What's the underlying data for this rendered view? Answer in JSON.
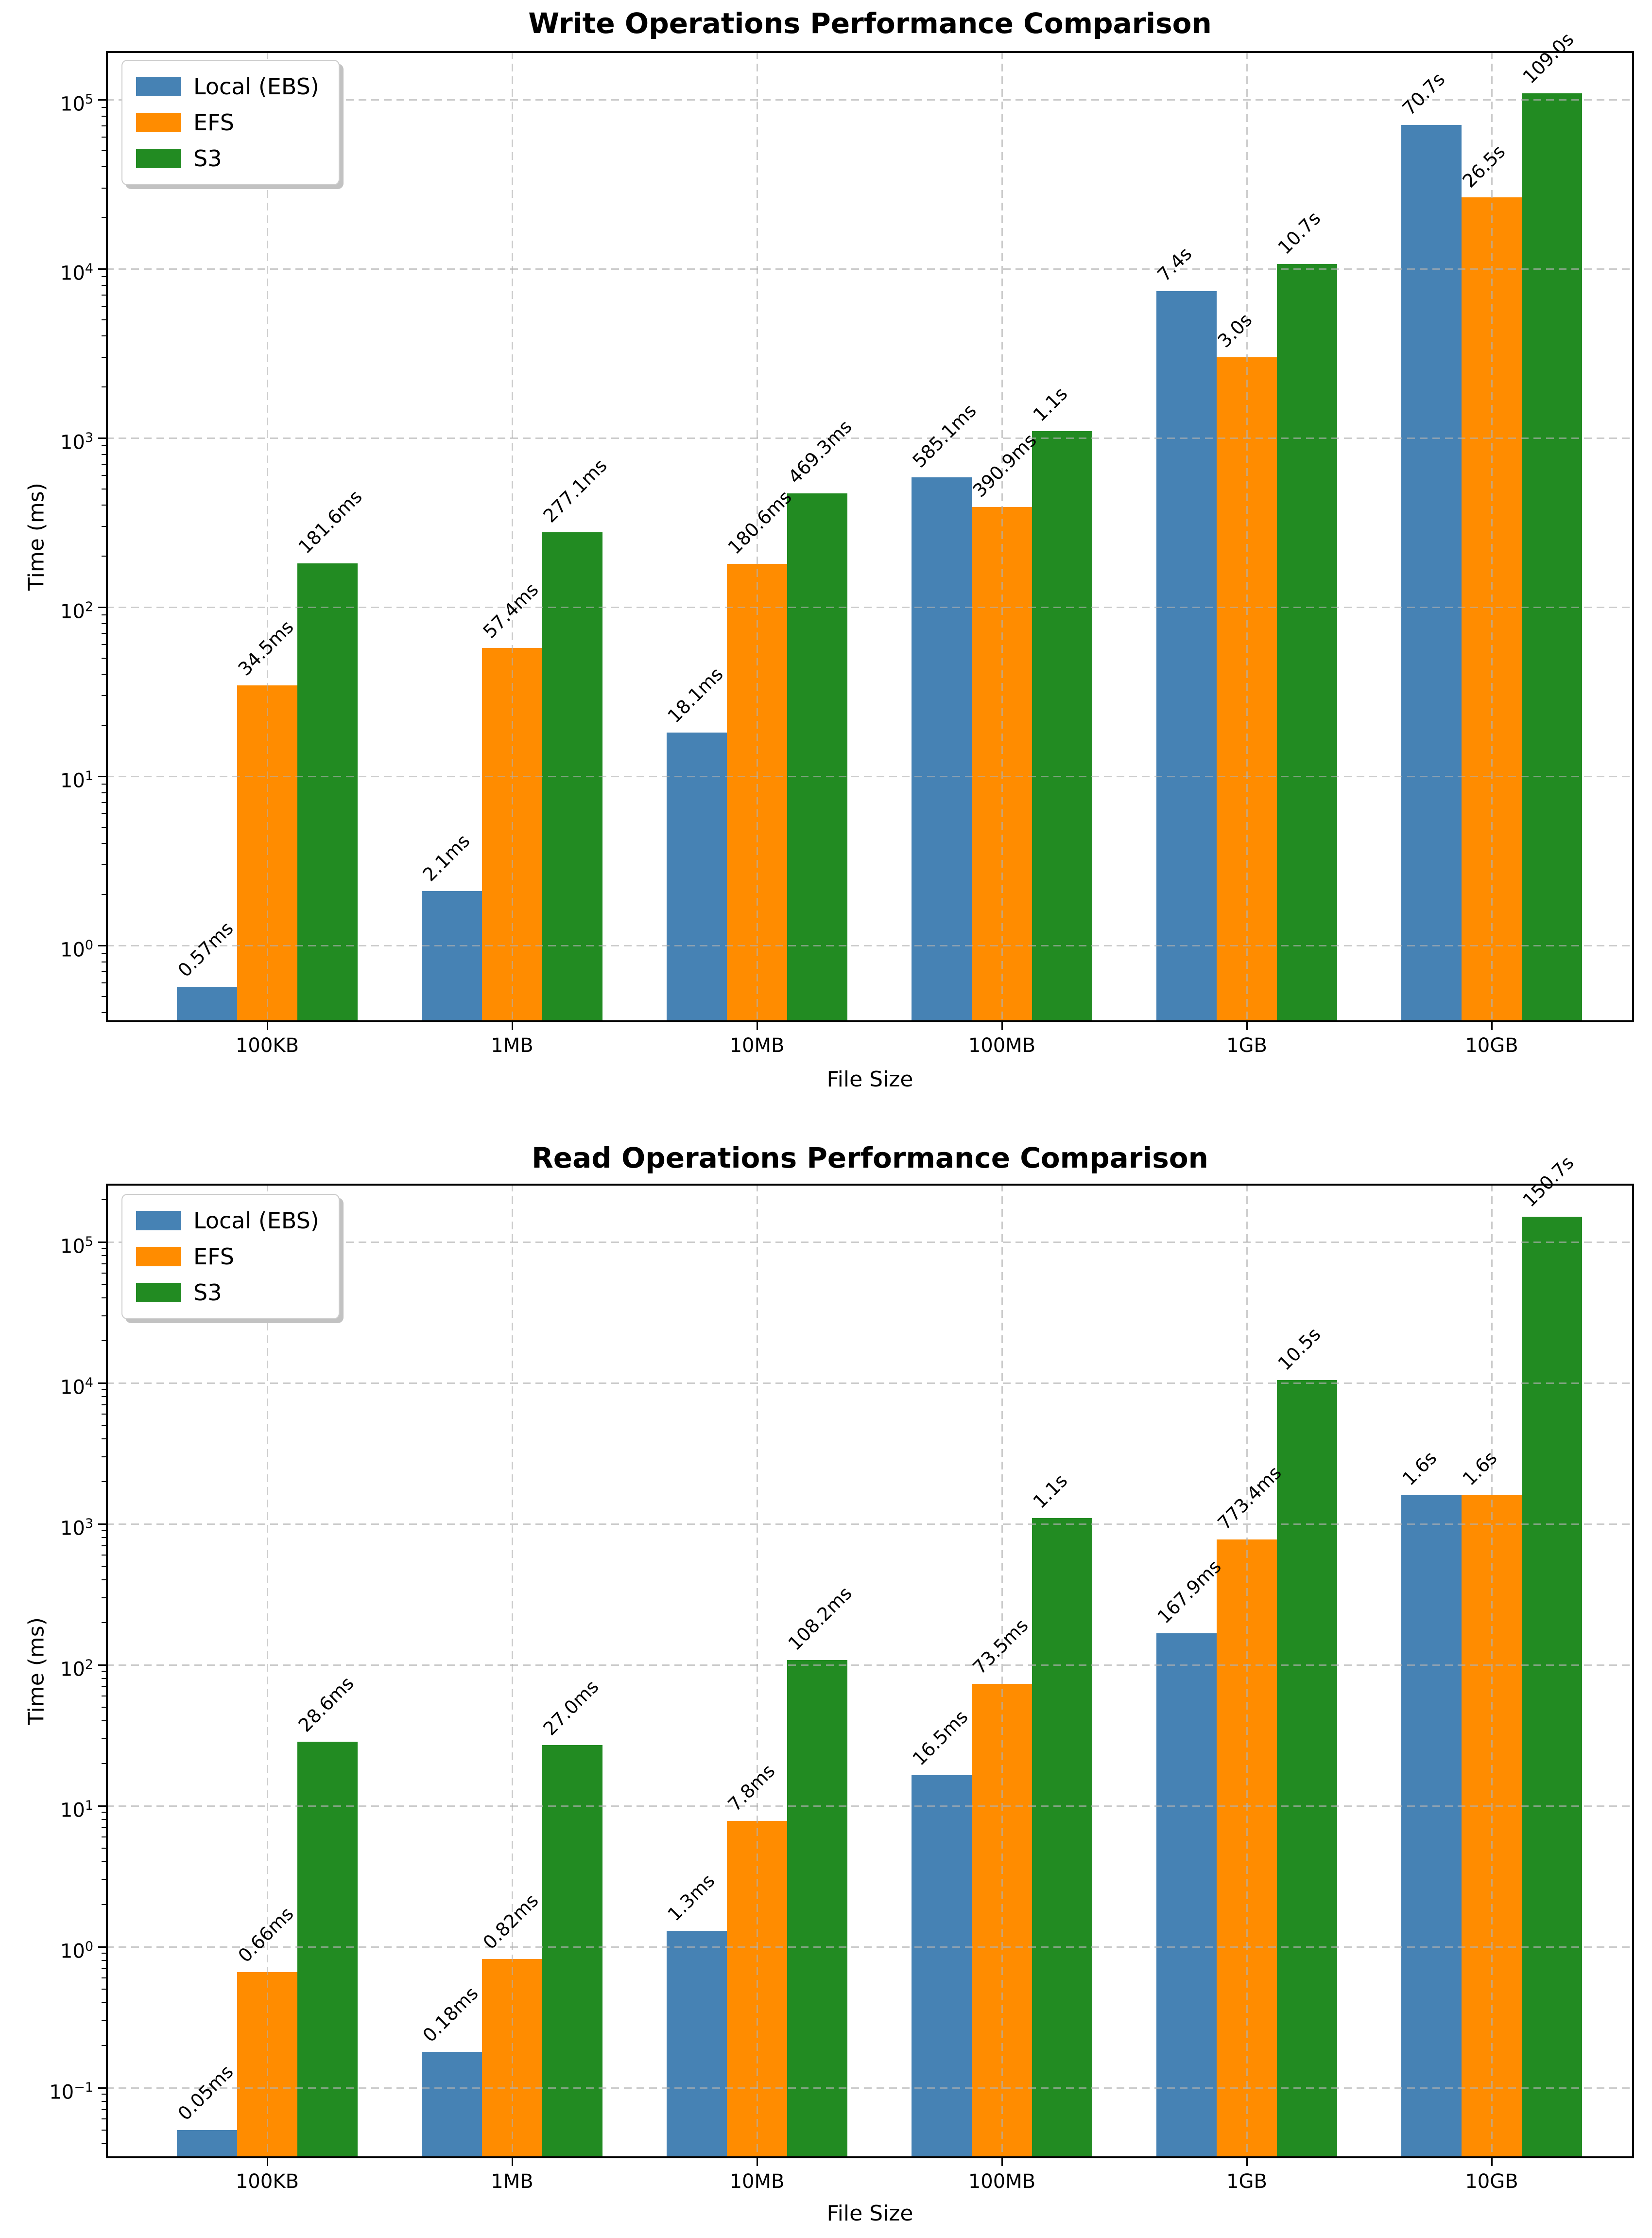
{
  "figure": {
    "background": "#ffffff"
  },
  "chart_data": [
    {
      "type": "bar",
      "title": "Write Operations Performance Comparison",
      "xlabel": "File Size",
      "ylabel": "Time (ms)",
      "yscale": "log",
      "ylim_ms": [
        0.35,
        194000
      ],
      "grid": true,
      "grid_style": "dashed",
      "legend_position": "upper left",
      "categories": [
        "100KB",
        "1MB",
        "10MB",
        "100MB",
        "1GB",
        "10GB"
      ],
      "y_tick_exponents": [
        0,
        1,
        2,
        3,
        4,
        5
      ],
      "series": [
        {
          "name": "Local (EBS)",
          "color": "#4682B4",
          "values_ms": [
            0.57,
            2.1,
            18.1,
            585.1,
            7400,
            70700
          ],
          "bar_labels": [
            "0.57ms",
            "2.1ms",
            "18.1ms",
            "585.1ms",
            "7.4s",
            "70.7s"
          ]
        },
        {
          "name": "EFS",
          "color": "#FF8C00",
          "values_ms": [
            34.5,
            57.4,
            180.6,
            390.9,
            3000,
            26500
          ],
          "bar_labels": [
            "34.5ms",
            "57.4ms",
            "180.6ms",
            "390.9ms",
            "3.0s",
            "26.5s"
          ]
        },
        {
          "name": "S3",
          "color": "#228B22",
          "values_ms": [
            181.6,
            277.1,
            469.3,
            1100,
            10700,
            109000
          ],
          "bar_labels": [
            "181.6ms",
            "277.1ms",
            "469.3ms",
            "1.1s",
            "10.7s",
            "109.0s"
          ]
        }
      ]
    },
    {
      "type": "bar",
      "title": "Read Operations Performance Comparison",
      "xlabel": "File Size",
      "ylabel": "Time (ms)",
      "yscale": "log",
      "ylim_ms": [
        0.032,
        259000
      ],
      "grid": true,
      "grid_style": "dashed",
      "legend_position": "upper left",
      "categories": [
        "100KB",
        "1MB",
        "10MB",
        "100MB",
        "1GB",
        "10GB"
      ],
      "y_tick_exponents": [
        -1,
        0,
        1,
        2,
        3,
        4,
        5
      ],
      "series": [
        {
          "name": "Local (EBS)",
          "color": "#4682B4",
          "values_ms": [
            0.05,
            0.18,
            1.3,
            16.5,
            167.9,
            1600
          ],
          "bar_labels": [
            "0.05ms",
            "0.18ms",
            "1.3ms",
            "16.5ms",
            "167.9ms",
            "1.6s"
          ]
        },
        {
          "name": "EFS",
          "color": "#FF8C00",
          "values_ms": [
            0.66,
            0.82,
            7.8,
            73.5,
            773.4,
            1600
          ],
          "bar_labels": [
            "0.66ms",
            "0.82ms",
            "7.8ms",
            "73.5ms",
            "773.4ms",
            "1.6s"
          ]
        },
        {
          "name": "S3",
          "color": "#228B22",
          "values_ms": [
            28.6,
            27.0,
            108.2,
            1100,
            10500,
            150700
          ],
          "bar_labels": [
            "28.6ms",
            "27.0ms",
            "108.2ms",
            "1.1s",
            "10.5s",
            "150.7s"
          ]
        }
      ]
    }
  ]
}
